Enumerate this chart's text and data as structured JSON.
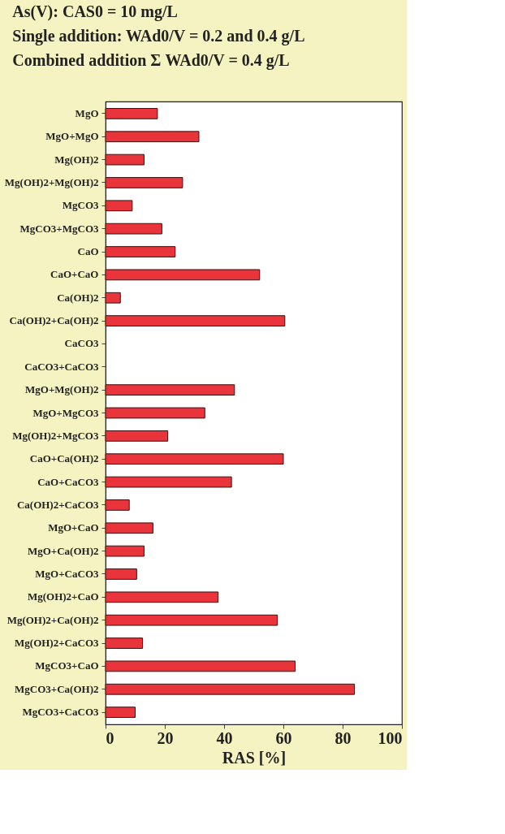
{
  "chart_data": {
    "type": "bar",
    "orientation": "horizontal",
    "title": "As(V): CAS0 = 10 mg/L",
    "subtitle": [
      "Single addition: WAd0/V =  0.2 and 0.4 g/L",
      "Combined addition Σ WAd0/V =  0.4 g/L"
    ],
    "xlabel": "RAS [%]",
    "categories": [
      "MgO",
      "MgO+MgO",
      "Mg(OH)2",
      "Mg(OH)2+Mg(OH)2",
      "MgCO3",
      "MgCO3+MgCO3",
      "CaO",
      "CaO+CaO",
      "Ca(OH)2",
      "Ca(OH)2+Ca(OH)2",
      "CaCO3",
      "CaCO3+CaCO3",
      "MgO+Mg(OH)2",
      "MgO+MgCO3",
      "Mg(OH)2+MgCO3",
      "CaO+Ca(OH)2",
      "CaO+CaCO3",
      "Ca(OH)2+CaCO3",
      "MgO+CaO",
      "MgO+Ca(OH)2",
      "MgO+CaCO3",
      "Mg(OH)2+CaO",
      "Mg(OH)2+Ca(OH)2",
      "Mg(OH)2+CaCO3",
      "MgCO3+CaO",
      "MgCO3+Ca(OH)2",
      "MgCO3+CaCO3"
    ],
    "values": [
      17.5,
      31.5,
      13,
      26,
      9,
      19,
      23.5,
      52,
      5,
      60.5,
      0,
      0,
      43.5,
      33.5,
      21,
      60,
      42.5,
      8,
      16,
      13,
      10.5,
      38,
      58,
      12.5,
      64,
      84,
      10
    ],
    "color": "#e8343a",
    "xlim": [
      0,
      100
    ],
    "xticks": [
      0,
      20,
      40,
      60,
      80,
      100
    ],
    "grid": false
  }
}
